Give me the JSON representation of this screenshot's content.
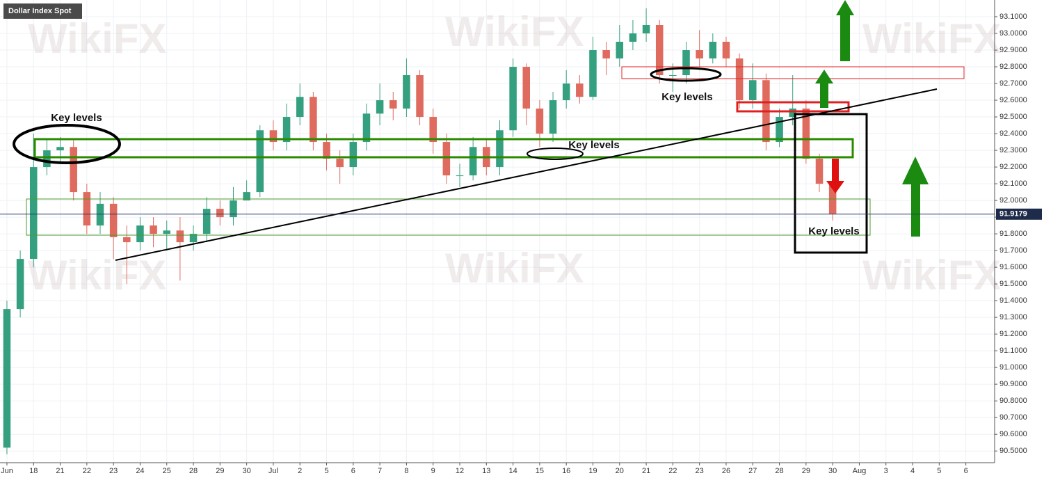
{
  "chart_data": {
    "type": "candlestick",
    "title": "Dollar Index Spot",
    "watermark": "WikiFX",
    "annotations": [
      "Key levels",
      "Key levels",
      "Key levels",
      "Key levels"
    ],
    "categories": [
      "Jun",
      "18",
      "21",
      "22",
      "23",
      "24",
      "25",
      "28",
      "29",
      "30",
      "Jul",
      "2",
      "5",
      "6",
      "7",
      "8",
      "9",
      "12",
      "13",
      "14",
      "15",
      "16",
      "19",
      "20",
      "21",
      "22",
      "23",
      "26",
      "27",
      "28",
      "29",
      "30",
      "Aug",
      "3",
      "4",
      "5",
      "6"
    ],
    "xlim": [
      -0.26,
      37.08
    ],
    "ylim": [
      90.43,
      93.2
    ],
    "yticks": [
      {
        "value": 90.5,
        "label": "90.5000"
      },
      {
        "value": 90.6,
        "label": "90.6000"
      },
      {
        "value": 90.7,
        "label": "90.7000"
      },
      {
        "value": 90.8,
        "label": "90.8000"
      },
      {
        "value": 90.9,
        "label": "90.9000"
      },
      {
        "value": 91.0,
        "label": "91.0000"
      },
      {
        "value": 91.1,
        "label": "91.1000"
      },
      {
        "value": 91.2,
        "label": "91.2000"
      },
      {
        "value": 91.3,
        "label": "91.3000"
      },
      {
        "value": 91.4,
        "label": "91.4000"
      },
      {
        "value": 91.5,
        "label": "91.5000"
      },
      {
        "value": 91.6,
        "label": "91.6000"
      },
      {
        "value": 91.7,
        "label": "91.7000"
      },
      {
        "value": 91.8,
        "label": "91.8000"
      },
      {
        "value": 91.9,
        "label": "91.9000"
      },
      {
        "value": 92.0,
        "label": "92.0000"
      },
      {
        "value": 92.1,
        "label": "92.1000"
      },
      {
        "value": 92.2,
        "label": "92.2000"
      },
      {
        "value": 92.3,
        "label": "92.3000"
      },
      {
        "value": 92.4,
        "label": "92.4000"
      },
      {
        "value": 92.5,
        "label": "92.5000"
      },
      {
        "value": 92.6,
        "label": "92.6000"
      },
      {
        "value": 92.7,
        "label": "92.7000"
      },
      {
        "value": 92.8,
        "label": "92.8000"
      },
      {
        "value": 92.9,
        "label": "92.9000"
      },
      {
        "value": 93.0,
        "label": "93.0000"
      },
      {
        "value": 93.1,
        "label": "93.1000"
      }
    ],
    "grid": true,
    "last_price": 91.9179,
    "up_color": "#35a07f",
    "down_color": "#df6a5e",
    "x": [
      0,
      0.5,
      1,
      1.5,
      2,
      2.5,
      3,
      3.5,
      4,
      4.5,
      5,
      5.5,
      6,
      6.5,
      7,
      7.5,
      8,
      8.5,
      9,
      9.5,
      10,
      10.5,
      11,
      11.5,
      12,
      12.5,
      13,
      13.5,
      14,
      14.5,
      15,
      15.5,
      16,
      16.5,
      17,
      17.5,
      18,
      18.5,
      19,
      19.5,
      20,
      20.5,
      21,
      21.5,
      22,
      22.5,
      23,
      23.5,
      24,
      24.5,
      25,
      25.5,
      26,
      26.5,
      27,
      27.5,
      28,
      28.5,
      29,
      29.5,
      30,
      30.5,
      31
    ],
    "open": [
      90.52,
      91.35,
      91.65,
      92.2,
      92.3,
      92.32,
      92.05,
      91.85,
      91.98,
      91.78,
      91.75,
      91.85,
      91.8,
      91.82,
      91.75,
      91.8,
      91.95,
      91.9,
      92.0,
      92.05,
      92.42,
      92.35,
      92.5,
      92.62,
      92.35,
      92.25,
      92.2,
      92.35,
      92.52,
      92.6,
      92.55,
      92.75,
      92.5,
      92.35,
      92.15,
      92.15,
      92.32,
      92.2,
      92.42,
      92.8,
      92.55,
      92.4,
      92.6,
      92.7,
      92.62,
      92.9,
      92.85,
      92.95,
      93.0,
      93.05,
      92.75,
      92.75,
      92.9,
      92.85,
      92.95,
      92.85,
      92.6,
      92.72,
      92.35,
      92.5,
      92.55,
      92.25,
      92.1
    ],
    "high": [
      91.4,
      91.7,
      92.4,
      92.37,
      92.38,
      92.36,
      92.1,
      92.05,
      92.02,
      91.85,
      91.9,
      91.9,
      91.88,
      91.9,
      91.85,
      92.02,
      92.0,
      92.08,
      92.12,
      92.45,
      92.48,
      92.58,
      92.7,
      92.65,
      92.4,
      92.3,
      92.4,
      92.58,
      92.7,
      92.65,
      92.85,
      92.78,
      92.55,
      92.4,
      92.22,
      92.38,
      92.36,
      92.48,
      92.85,
      92.82,
      92.6,
      92.65,
      92.78,
      92.75,
      92.98,
      92.95,
      93.05,
      93.08,
      93.15,
      93.08,
      92.82,
      92.95,
      93.02,
      93.0,
      92.98,
      92.88,
      92.82,
      92.76,
      92.55,
      92.75,
      92.6,
      92.28,
      92.12
    ],
    "low": [
      90.48,
      91.3,
      91.6,
      92.15,
      92.22,
      92.0,
      91.8,
      91.8,
      91.65,
      91.5,
      91.7,
      91.72,
      91.7,
      91.52,
      91.7,
      91.75,
      91.85,
      91.85,
      92.0,
      92.02,
      92.3,
      92.3,
      92.45,
      92.3,
      92.18,
      92.1,
      92.15,
      92.3,
      92.45,
      92.48,
      92.5,
      92.45,
      92.28,
      92.1,
      92.08,
      92.12,
      92.15,
      92.15,
      92.38,
      92.45,
      92.32,
      92.35,
      92.55,
      92.58,
      92.6,
      92.75,
      92.8,
      92.9,
      92.95,
      92.7,
      92.65,
      92.7,
      92.8,
      92.82,
      92.8,
      92.55,
      92.55,
      92.3,
      92.32,
      92.45,
      92.22,
      92.05,
      91.88
    ],
    "close": [
      91.35,
      91.65,
      92.2,
      92.3,
      92.32,
      92.05,
      91.85,
      91.98,
      91.78,
      91.75,
      91.85,
      91.8,
      91.82,
      91.75,
      91.8,
      91.95,
      91.9,
      92.0,
      92.05,
      92.42,
      92.35,
      92.5,
      92.62,
      92.35,
      92.25,
      92.2,
      92.35,
      92.52,
      92.6,
      92.55,
      92.75,
      92.5,
      92.35,
      92.15,
      92.15,
      92.32,
      92.2,
      92.42,
      92.8,
      92.55,
      92.4,
      92.6,
      92.7,
      92.62,
      92.9,
      92.85,
      92.95,
      93.0,
      93.05,
      92.75,
      92.75,
      92.9,
      92.85,
      92.95,
      92.85,
      92.6,
      92.72,
      92.35,
      92.5,
      92.55,
      92.25,
      92.1,
      91.92
    ]
  }
}
